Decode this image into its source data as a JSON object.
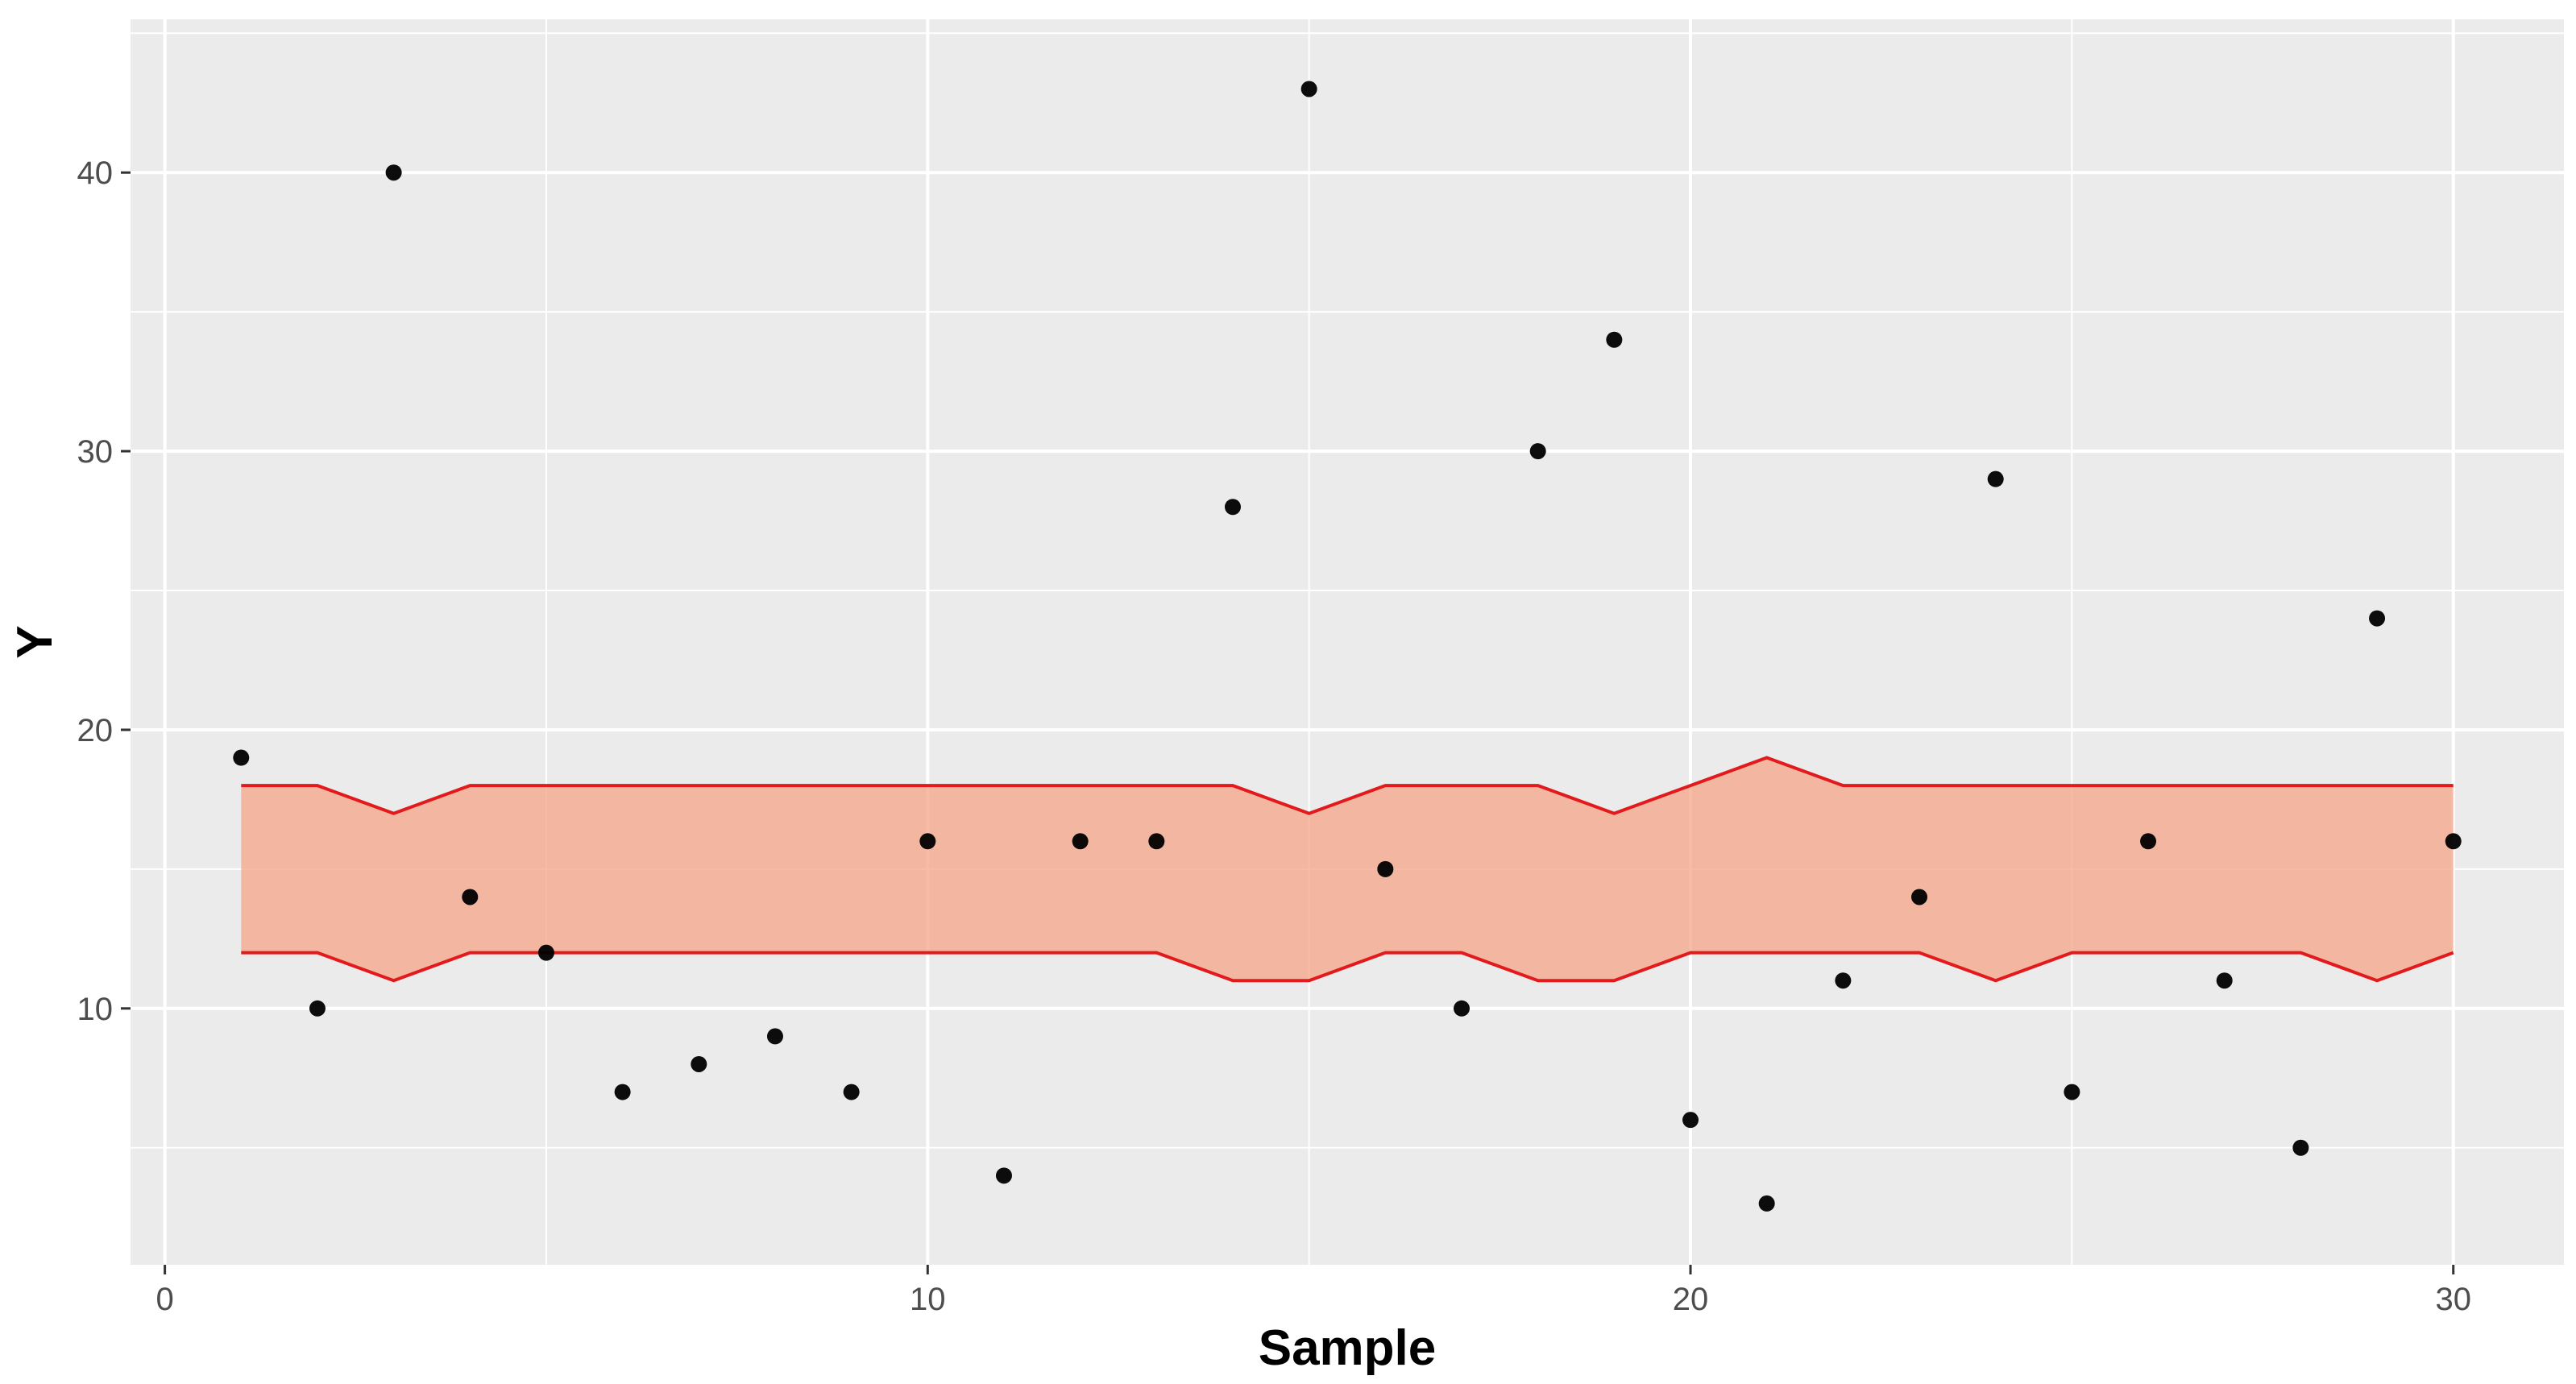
{
  "chart_data": {
    "type": "scatter",
    "title": "",
    "xlabel": "Sample",
    "ylabel": "Y",
    "xlim": [
      -0.45,
      31.45
    ],
    "ylim": [
      0.8,
      45.5
    ],
    "x_ticks": [
      0,
      10,
      20,
      30
    ],
    "y_ticks": [
      10,
      20,
      30,
      40
    ],
    "grid": true,
    "legend": "none",
    "colors": {
      "panel_bg": "#ebebeb",
      "grid": "#ffffff",
      "point": "#000000",
      "band_fill": "#f4a488",
      "band_line": "#e31a1c",
      "tick_text": "#4d4d4d",
      "tick_mark": "#333333"
    },
    "points": {
      "x": [
        1,
        2,
        3,
        4,
        5,
        6,
        7,
        8,
        9,
        10,
        11,
        12,
        13,
        14,
        15,
        16,
        17,
        18,
        19,
        20,
        21,
        22,
        23,
        24,
        25,
        26,
        27,
        28,
        29,
        30
      ],
      "y": [
        19,
        10,
        40,
        14,
        12,
        7,
        8,
        9,
        7,
        16,
        4,
        16,
        16,
        28,
        43,
        15,
        10,
        30,
        34,
        6,
        3,
        11,
        14,
        29,
        7,
        16,
        11,
        5,
        24,
        16
      ]
    },
    "band": {
      "x": [
        1,
        2,
        3,
        4,
        5,
        6,
        7,
        8,
        9,
        10,
        11,
        12,
        13,
        14,
        15,
        16,
        17,
        18,
        19,
        20,
        21,
        22,
        23,
        24,
        25,
        26,
        27,
        28,
        29,
        30
      ],
      "upper": [
        18,
        18,
        17,
        18,
        18,
        18,
        18,
        18,
        18,
        18,
        18,
        18,
        18,
        18,
        17,
        18,
        18,
        18,
        17,
        18,
        19,
        18,
        18,
        18,
        18,
        18,
        18,
        18,
        18,
        18
      ],
      "lower": [
        12,
        12,
        11,
        12,
        12,
        12,
        12,
        12,
        12,
        12,
        12,
        12,
        12,
        11,
        11,
        12,
        12,
        11,
        11,
        12,
        12,
        12,
        12,
        11,
        12,
        12,
        12,
        12,
        11,
        12
      ]
    }
  }
}
